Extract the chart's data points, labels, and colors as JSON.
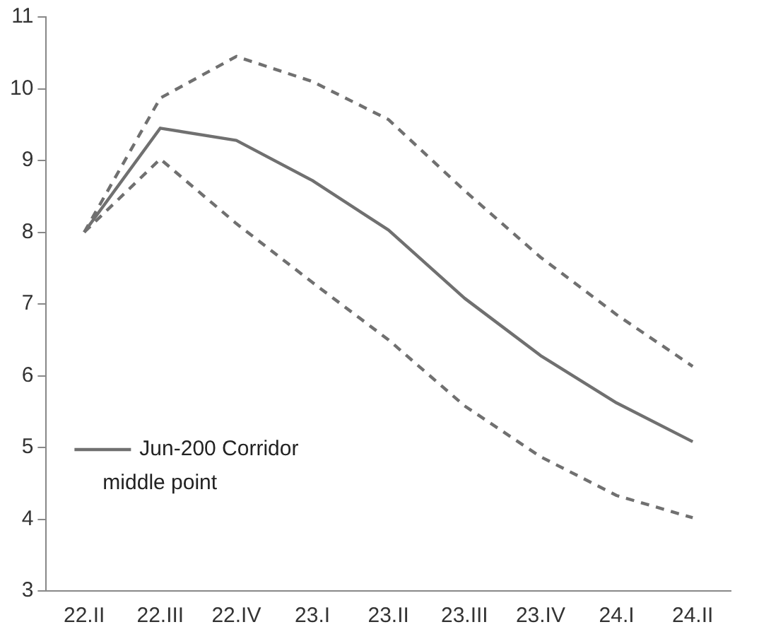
{
  "chart_data": {
    "type": "line",
    "categories": [
      "22.II",
      "22.III",
      "22.IV",
      "23.I",
      "23.II",
      "23.III",
      "23.IV",
      "24.I",
      "24.II"
    ],
    "series": [
      {
        "name": "Jun-200 Corridor middle point",
        "color": "#707070",
        "line_style": "solid",
        "values": [
          8.0,
          9.45,
          9.28,
          8.72,
          8.03,
          7.08,
          6.28,
          5.62,
          5.08
        ]
      },
      {
        "color": "#707070",
        "line_style": "dashed",
        "values": [
          8.0,
          9.87,
          10.45,
          10.1,
          9.57,
          8.58,
          7.65,
          6.85,
          6.13
        ]
      },
      {
        "color": "#707070",
        "line_style": "dashed",
        "values": [
          8.0,
          9.02,
          8.12,
          7.3,
          6.5,
          5.58,
          4.87,
          4.33,
          4.02
        ]
      }
    ],
    "ylim": [
      3,
      11
    ],
    "yticks": [
      3,
      4,
      5,
      6,
      7,
      8,
      9,
      10,
      11
    ],
    "grid": false,
    "legend": "bottom left",
    "marker": "none"
  }
}
